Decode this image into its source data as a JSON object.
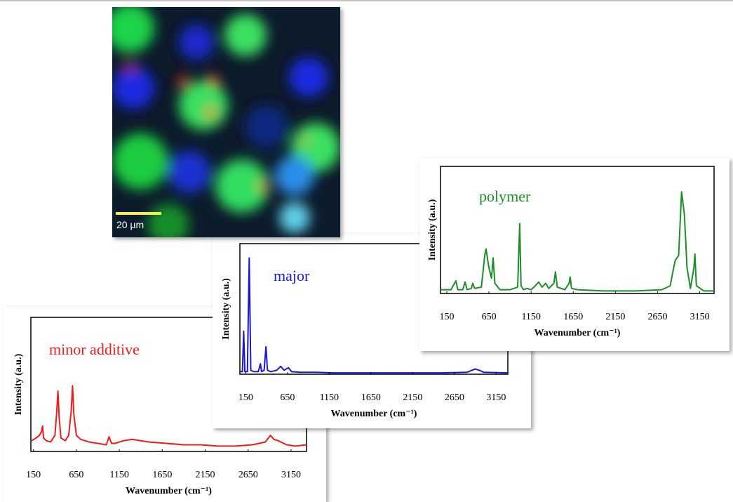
{
  "image_scale_bar": "20 µm",
  "chart_data": [
    {
      "type": "line",
      "title": "minor additive",
      "x_label": "Wavenumber (cm⁻¹)",
      "y_label": "Intensity (a.u.)",
      "color": "#ee1c1c",
      "xlim": [
        120,
        3330
      ],
      "ylim": [
        0,
        100
      ],
      "xticks": [
        150,
        650,
        1150,
        1650,
        2150,
        2650,
        3150
      ],
      "x": [
        130,
        180,
        220,
        245,
        256,
        268,
        300,
        350,
        400,
        420,
        435,
        450,
        470,
        520,
        560,
        590,
        605,
        620,
        650,
        700,
        800,
        900,
        1000,
        1030,
        1060,
        1100,
        1200,
        1300,
        1400,
        1500,
        1700,
        1900,
        2100,
        2300,
        2500,
        2700,
        2850,
        2910,
        2950,
        3000,
        3100,
        3200,
        3330
      ],
      "values": [
        8,
        10,
        12,
        15,
        19,
        10,
        8,
        7,
        12,
        28,
        45,
        25,
        10,
        8,
        12,
        30,
        49,
        28,
        12,
        9,
        7,
        6,
        5,
        11,
        6,
        6,
        8,
        9,
        8,
        7,
        6,
        5,
        5,
        4,
        4,
        5,
        7,
        12,
        9,
        8,
        5,
        4,
        5
      ]
    },
    {
      "type": "line",
      "title": "major",
      "x_label": "Wavenumber (cm⁻¹)",
      "y_label": "Intensity (a.u.)",
      "color": "#1a1acc",
      "xlim": [
        80,
        3290
      ],
      "ylim": [
        0,
        100
      ],
      "xticks": [
        150,
        650,
        1150,
        1650,
        2150,
        2650,
        3150
      ],
      "x": [
        80,
        110,
        125,
        140,
        170,
        192,
        210,
        250,
        300,
        326,
        340,
        370,
        393,
        410,
        450,
        520,
        569,
        610,
        661,
        700,
        800,
        1000,
        1200,
        1500,
        2000,
        2500,
        2800,
        2900,
        2950,
        3000,
        3290
      ],
      "values": [
        2,
        2,
        33,
        2,
        2,
        89,
        3,
        2,
        2,
        8,
        2,
        3,
        21,
        3,
        2,
        3,
        6,
        3,
        5,
        2,
        1.5,
        1.5,
        1,
        1,
        1,
        1,
        1.5,
        4,
        3,
        1.5,
        1
      ]
    },
    {
      "type": "line",
      "title": "polymer",
      "x_label": "Wavenumber (cm⁻¹)",
      "y_label": "Intensity (a.u.)",
      "color": "#1e8c2a",
      "xlim": [
        75,
        3320
      ],
      "ylim": [
        0,
        100
      ],
      "xticks": [
        150,
        650,
        1150,
        1650,
        2150,
        2650,
        3150
      ],
      "x": [
        75,
        200,
        258,
        280,
        340,
        366,
        390,
        440,
        458,
        480,
        560,
        600,
        615,
        650,
        680,
        699,
        720,
        780,
        900,
        990,
        1014,
        1030,
        1060,
        1100,
        1150,
        1200,
        1239,
        1280,
        1322,
        1360,
        1420,
        1438,
        1460,
        1550,
        1600,
        1613,
        1630,
        1700,
        2000,
        2400,
        2700,
        2800,
        2840,
        2860,
        2900,
        2935,
        2968,
        3000,
        3040,
        3080,
        3093,
        3110,
        3200,
        3320
      ],
      "values": [
        3,
        3,
        10,
        3,
        3,
        9,
        3,
        4,
        8,
        4,
        5,
        30,
        35,
        20,
        12,
        28,
        8,
        3,
        3,
        5,
        55,
        6,
        3,
        4,
        3,
        6,
        9,
        5,
        8,
        4,
        8,
        17,
        5,
        3,
        8,
        13,
        4,
        3,
        2,
        2,
        3,
        6,
        20,
        26,
        30,
        80,
        62,
        20,
        4,
        20,
        31,
        6,
        2,
        2
      ]
    }
  ]
}
